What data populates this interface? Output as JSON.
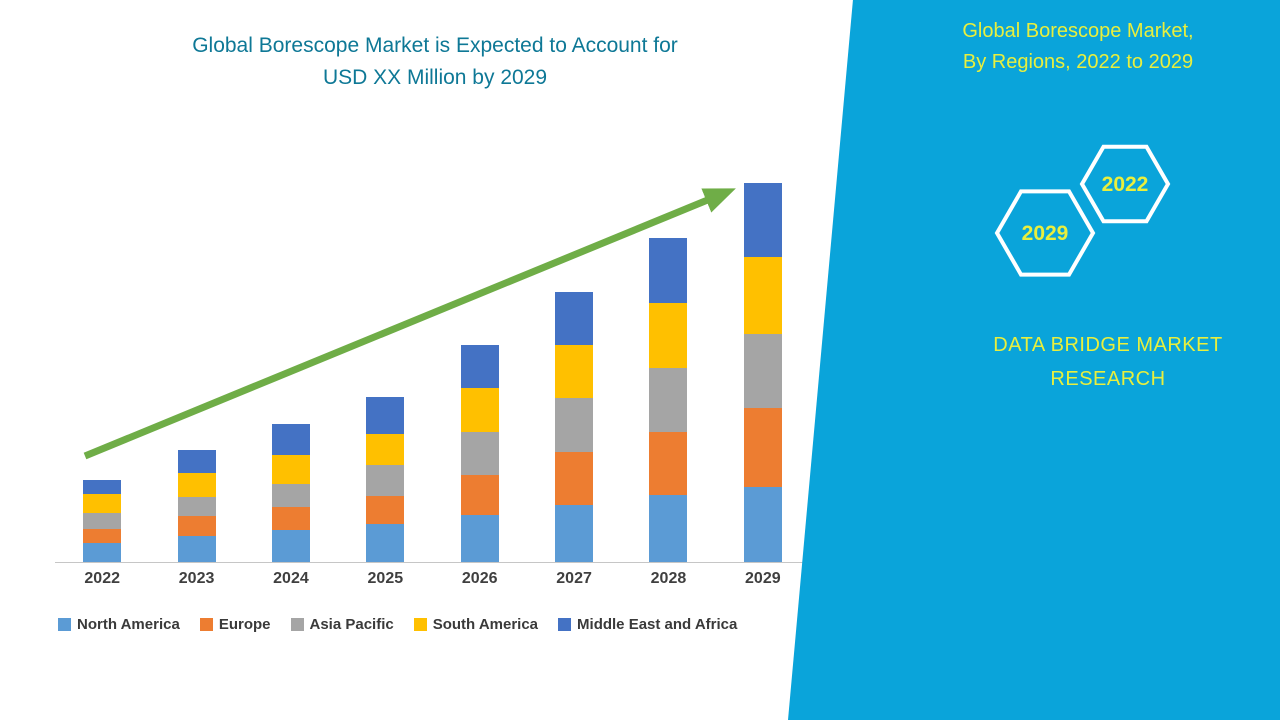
{
  "chart_data": {
    "type": "bar",
    "stacked": true,
    "title_line1": "Global Borescope Market is Expected to Account for",
    "title_line2": "USD XX Million by 2029",
    "categories": [
      "2022",
      "2023",
      "2024",
      "2025",
      "2026",
      "2027",
      "2028",
      "2029"
    ],
    "series": [
      {
        "name": "North America",
        "color": "#5b9bd5",
        "values": [
          19,
          26,
          32,
          38,
          47,
          57,
          67,
          75
        ]
      },
      {
        "name": "Europe",
        "color": "#ed7d31",
        "values": [
          14,
          20,
          23,
          28,
          40,
          53,
          63,
          79
        ]
      },
      {
        "name": "Asia Pacific",
        "color": "#a5a5a5",
        "values": [
          16,
          19,
          23,
          31,
          43,
          54,
          64,
          74
        ]
      },
      {
        "name": "South America",
        "color": "#ffc000",
        "values": [
          19,
          24,
          29,
          31,
          44,
          53,
          65,
          77
        ]
      },
      {
        "name": "Middle East and Africa",
        "color": "#4472c4",
        "values": [
          14,
          23,
          31,
          37,
          43,
          53,
          65,
          74
        ]
      }
    ],
    "ylim": [
      0,
      400
    ],
    "y_axis_visible": false,
    "grid": false,
    "legend_position": "bottom",
    "axis_line_color": "#c6c6c6",
    "trend_arrow_color": "#6fad47"
  },
  "side_panel": {
    "background": "#0aa4da",
    "accent_yellow": "#e9ef3d",
    "title_line1": "Global Borescope Market,",
    "title_line2": "By Regions, 2022 to 2029",
    "hexagons": [
      {
        "label": "2029",
        "label_color": "#e9ef3d"
      },
      {
        "label": "2022",
        "label_color": "#e9ef3d"
      }
    ],
    "brand_line1": "DATA BRIDGE MARKET",
    "brand_line2": "RESEARCH"
  }
}
